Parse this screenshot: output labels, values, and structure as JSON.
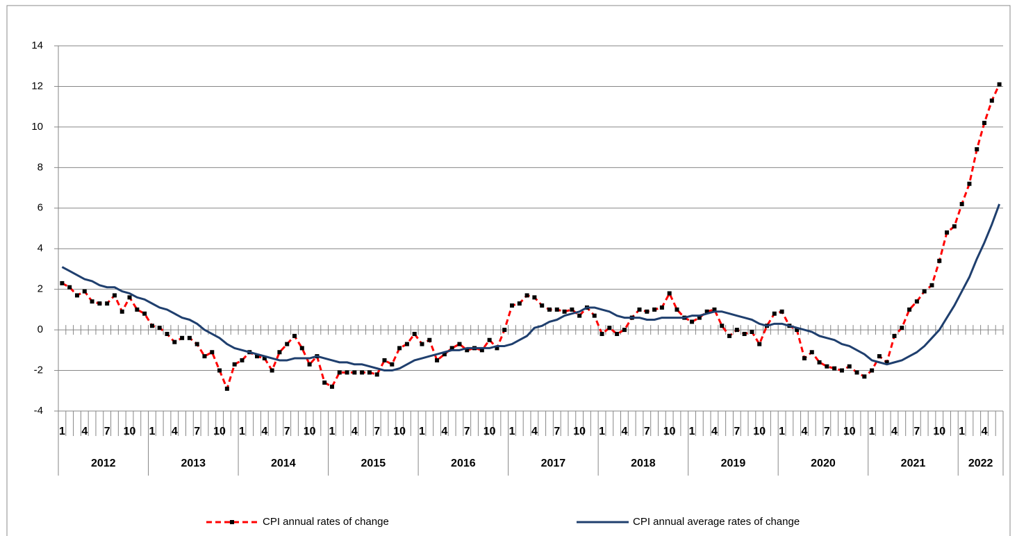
{
  "chart_data": {
    "type": "line",
    "categories": [
      "1",
      null,
      null,
      "4",
      null,
      null,
      "7",
      null,
      null,
      "10",
      null,
      null,
      "1",
      null,
      null,
      "4",
      null,
      null,
      "7",
      null,
      null,
      "10",
      null,
      null,
      "1",
      null,
      null,
      "4",
      null,
      null,
      "7",
      null,
      null,
      "10",
      null,
      null,
      "1",
      null,
      null,
      "4",
      null,
      null,
      "7",
      null,
      null,
      "10",
      null,
      null,
      "1",
      null,
      null,
      "4",
      null,
      null,
      "7",
      null,
      null,
      "10",
      null,
      null,
      "1",
      null,
      null,
      "4",
      null,
      null,
      "7",
      null,
      null,
      "10",
      null,
      null,
      "1",
      null,
      null,
      "4",
      null,
      null,
      "7",
      null,
      null,
      "10",
      null,
      null,
      "1",
      null,
      null,
      "4",
      null,
      null,
      "7",
      null,
      null,
      "10",
      null,
      null,
      "1",
      null,
      null,
      "4",
      null,
      null,
      "7",
      null,
      null,
      "10",
      null,
      null,
      "1",
      null,
      null,
      "4",
      null,
      null,
      "7",
      null,
      null,
      "10",
      null,
      null,
      "1",
      null,
      null,
      "4",
      null,
      null
    ],
    "years": [
      "2012",
      "2013",
      "2014",
      "2015",
      "2016",
      "2017",
      "2018",
      "2019",
      "2020",
      "2021",
      "2022"
    ],
    "series": [
      {
        "name": "CPI annual rates of change",
        "color": "#ff0000",
        "marker_color": "#000000",
        "dashed": true,
        "values": [
          2.3,
          2.1,
          1.7,
          1.9,
          1.4,
          1.3,
          1.3,
          1.7,
          0.9,
          1.6,
          1.0,
          0.8,
          0.2,
          0.1,
          -0.2,
          -0.6,
          -0.4,
          -0.4,
          -0.7,
          -1.3,
          -1.1,
          -2.0,
          -2.9,
          -1.7,
          -1.5,
          -1.1,
          -1.3,
          -1.4,
          -2.0,
          -1.1,
          -0.7,
          -0.3,
          -0.9,
          -1.7,
          -1.3,
          -2.6,
          -2.8,
          -2.1,
          -2.1,
          -2.1,
          -2.1,
          -2.1,
          -2.2,
          -1.5,
          -1.7,
          -0.9,
          -0.7,
          -0.2,
          -0.7,
          -0.5,
          -1.5,
          -1.2,
          -0.9,
          -0.7,
          -1.0,
          -0.9,
          -1.0,
          -0.5,
          -0.9,
          0.0,
          1.2,
          1.3,
          1.7,
          1.6,
          1.2,
          1.0,
          1.0,
          0.9,
          1.0,
          0.7,
          1.1,
          0.7,
          -0.2,
          0.1,
          -0.2,
          0.0,
          0.6,
          1.0,
          0.9,
          1.0,
          1.1,
          1.8,
          1.0,
          0.6,
          0.4,
          0.6,
          0.9,
          1.0,
          0.2,
          -0.3,
          0.0,
          -0.2,
          -0.1,
          -0.7,
          0.2,
          0.8,
          0.9,
          0.2,
          0.0,
          -1.4,
          -1.1,
          -1.6,
          -1.8,
          -1.9,
          -2.0,
          -1.8,
          -2.1,
          -2.3,
          -2.0,
          -1.3,
          -1.6,
          -0.3,
          0.1,
          1.0,
          1.4,
          1.9,
          2.2,
          3.4,
          4.8,
          5.1,
          6.2,
          7.2,
          8.9,
          10.2,
          11.3,
          12.1
        ]
      },
      {
        "name": "CPI annual average rates of change",
        "color": "#1f3f6e",
        "dashed": false,
        "values": [
          3.1,
          2.9,
          2.7,
          2.5,
          2.4,
          2.2,
          2.1,
          2.1,
          1.9,
          1.8,
          1.6,
          1.5,
          1.3,
          1.1,
          1.0,
          0.8,
          0.6,
          0.5,
          0.3,
          0.0,
          -0.2,
          -0.4,
          -0.7,
          -0.9,
          -1.0,
          -1.1,
          -1.2,
          -1.3,
          -1.4,
          -1.5,
          -1.5,
          -1.4,
          -1.4,
          -1.4,
          -1.3,
          -1.4,
          -1.5,
          -1.6,
          -1.6,
          -1.7,
          -1.7,
          -1.8,
          -1.9,
          -2.0,
          -2.0,
          -1.9,
          -1.7,
          -1.5,
          -1.4,
          -1.3,
          -1.2,
          -1.1,
          -1.0,
          -1.0,
          -0.9,
          -0.9,
          -0.9,
          -0.9,
          -0.8,
          -0.8,
          -0.7,
          -0.5,
          -0.3,
          0.1,
          0.2,
          0.4,
          0.5,
          0.7,
          0.8,
          0.9,
          1.1,
          1.1,
          1.0,
          0.9,
          0.7,
          0.6,
          0.6,
          0.6,
          0.5,
          0.5,
          0.6,
          0.6,
          0.6,
          0.6,
          0.7,
          0.7,
          0.8,
          0.9,
          0.9,
          0.8,
          0.7,
          0.6,
          0.5,
          0.3,
          0.2,
          0.3,
          0.3,
          0.2,
          0.1,
          0.0,
          -0.1,
          -0.3,
          -0.4,
          -0.5,
          -0.7,
          -0.8,
          -1.0,
          -1.2,
          -1.5,
          -1.6,
          -1.7,
          -1.6,
          -1.5,
          -1.3,
          -1.1,
          -0.8,
          -0.4,
          0.0,
          0.6,
          1.2,
          1.9,
          2.6,
          3.5,
          4.3,
          5.2,
          6.2
        ]
      }
    ],
    "ylim": [
      -4,
      14
    ],
    "yticks": [
      -4,
      -2,
      0,
      2,
      4,
      6,
      8,
      10,
      12,
      14
    ],
    "grid": true,
    "legend": "bottom"
  }
}
